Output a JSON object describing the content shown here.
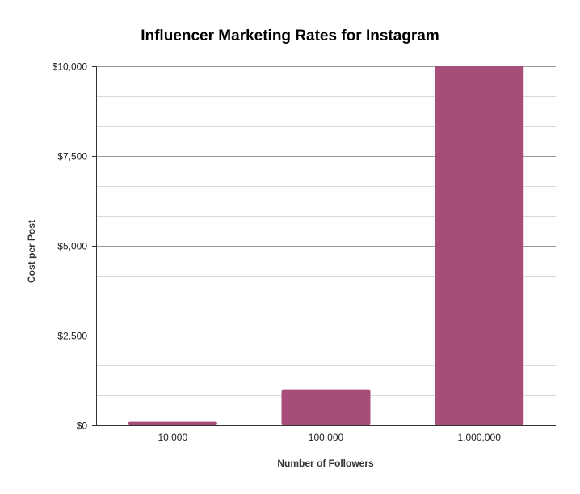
{
  "chart_data": {
    "type": "bar",
    "title": "Influencer Marketing Rates for Instagram",
    "xlabel": "Number of Followers",
    "ylabel": "Cost per Post",
    "categories": [
      "10,000",
      "100,000",
      "1,000,000"
    ],
    "values": [
      100,
      1000,
      10000
    ],
    "ylim": [
      0,
      10000
    ],
    "y_ticks": [
      0,
      2500,
      5000,
      7500,
      10000
    ],
    "y_tick_labels": [
      "$0",
      "$2,500",
      "$5,000",
      "$7,500",
      "$10,000"
    ],
    "minor_gridlines": true,
    "grid": true,
    "legend": "none",
    "bar_color": "#a64d79",
    "gridline_color": "#cccccc",
    "axis_color": "#333333"
  }
}
